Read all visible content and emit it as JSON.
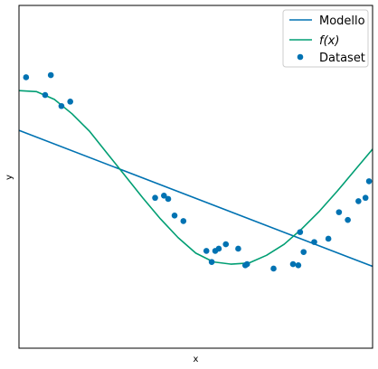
{
  "chart_data": {
    "type": "scatter",
    "title": "",
    "xlabel": "x",
    "ylabel": "y",
    "xlim": [
      0,
      10
    ],
    "ylim": [
      -1.55,
      1.55
    ],
    "grid": false,
    "legend_position": "top-right",
    "series": [
      {
        "name": "Modello",
        "kind": "line",
        "color": "#0072B2",
        "x": [
          0,
          10
        ],
        "y": [
          0.42,
          -0.81
        ]
      },
      {
        "name": "$f(x)$",
        "display_name": "f(x)",
        "kind": "line",
        "color": "#009E73",
        "x": [
          0.0,
          0.5,
          1.0,
          1.5,
          2.0,
          2.5,
          3.0,
          3.5,
          4.0,
          4.5,
          5.0,
          5.5,
          6.0,
          6.5,
          7.0,
          7.5,
          8.0,
          8.5,
          9.0,
          9.5,
          10.0
        ],
        "y": [
          0.78,
          0.77,
          0.7,
          0.57,
          0.41,
          0.21,
          0.01,
          -0.19,
          -0.38,
          -0.55,
          -0.69,
          -0.77,
          -0.79,
          -0.78,
          -0.71,
          -0.61,
          -0.47,
          -0.31,
          -0.13,
          0.06,
          0.25
        ]
      },
      {
        "name": "Dataset",
        "kind": "scatter",
        "color": "#0072B2",
        "x": [
          0.2,
          0.74,
          0.9,
          1.2,
          1.45,
          3.85,
          4.1,
          4.22,
          4.4,
          4.65,
          5.3,
          5.45,
          5.55,
          5.65,
          5.85,
          6.2,
          6.4,
          6.45,
          7.2,
          7.75,
          7.9,
          7.95,
          8.05,
          8.35,
          8.75,
          9.05,
          9.3,
          9.6,
          9.8,
          9.9
        ],
        "y": [
          0.9,
          0.74,
          0.92,
          0.64,
          0.68,
          -0.19,
          -0.17,
          -0.2,
          -0.35,
          -0.4,
          -0.67,
          -0.77,
          -0.67,
          -0.65,
          -0.61,
          -0.65,
          -0.8,
          -0.79,
          -0.83,
          -0.79,
          -0.8,
          -0.5,
          -0.68,
          -0.59,
          -0.56,
          -0.32,
          -0.39,
          -0.22,
          -0.19,
          -0.04
        ]
      }
    ]
  },
  "legend": {
    "entries": [
      "Modello",
      "f(x)",
      "Dataset"
    ]
  }
}
